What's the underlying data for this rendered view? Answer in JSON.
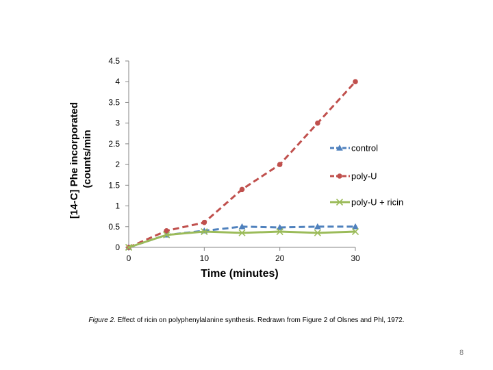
{
  "chart_data": {
    "type": "line",
    "title": "",
    "xlabel": "Time (minutes)",
    "ylabel_lines": [
      "[14-C] Phe incorporated",
      "(counts/min"
    ],
    "x": [
      0,
      5,
      10,
      15,
      20,
      25,
      30
    ],
    "xlim": [
      0,
      30
    ],
    "ylim": [
      0,
      4.5
    ],
    "x_ticks": [
      0,
      10,
      20,
      30
    ],
    "x_tick_labels": [
      "0",
      "10",
      "20",
      "30"
    ],
    "y_ticks": [
      0,
      0.5,
      1,
      1.5,
      2,
      2.5,
      3,
      3.5,
      4,
      4.5
    ],
    "y_tick_labels": [
      "0",
      "0.5",
      "1",
      "1.5",
      "2",
      "2.5",
      "3",
      "3.5",
      "4",
      "4.5"
    ],
    "grid": false,
    "legend_position": "right",
    "series": [
      {
        "name": "control",
        "values": [
          0,
          0.3,
          0.4,
          0.5,
          0.48,
          0.5,
          0.5
        ],
        "color": "#4f81bd",
        "marker": "triangle",
        "dash": true
      },
      {
        "name": "poly-U",
        "values": [
          0,
          0.4,
          0.6,
          1.4,
          2.0,
          3.0,
          4.0
        ],
        "color": "#c0504d",
        "marker": "circle",
        "dash": true
      },
      {
        "name": "poly-U + ricin",
        "values": [
          0,
          0.3,
          0.38,
          0.35,
          0.38,
          0.35,
          0.38
        ],
        "color": "#9bbb59",
        "marker": "x",
        "dash": false
      }
    ]
  },
  "caption": {
    "figure_label": "Figure 2.",
    "text": " Effect of ricin on polyphenylalanine synthesis. Redrawn from Figure 2 of Olsnes and Phl, 1972."
  },
  "page_number": "8"
}
